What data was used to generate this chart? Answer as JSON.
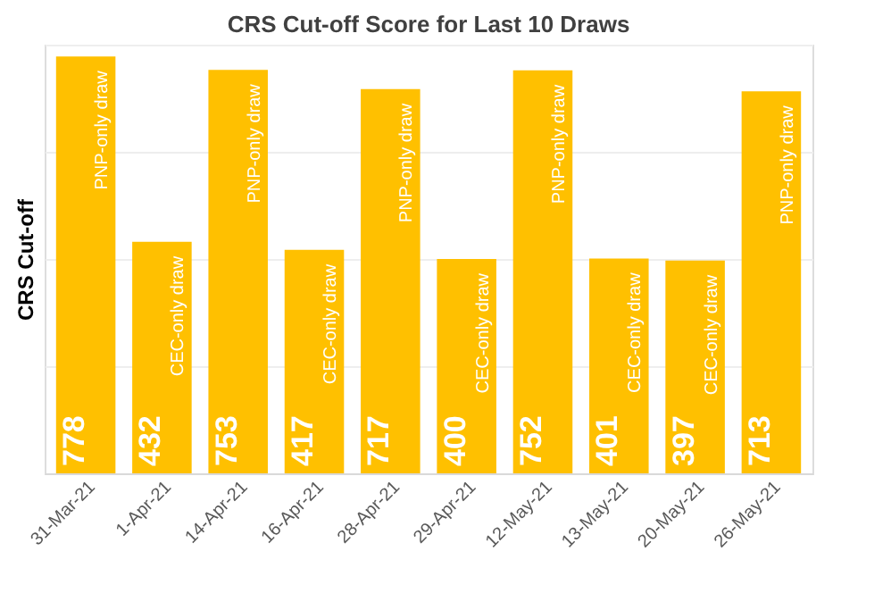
{
  "chart_data": {
    "type": "bar",
    "title": "CRS Cut-off Score for Last 10 Draws",
    "ylabel": "CRS Cut-off",
    "categories": [
      "31-Mar-21",
      "1-Apr-21",
      "14-Apr-21",
      "16-Apr-21",
      "28-Apr-21",
      "29-Apr-21",
      "12-May-21",
      "13-May-21",
      "20-May-21",
      "26-May-21"
    ],
    "values": [
      778,
      432,
      753,
      417,
      717,
      400,
      752,
      401,
      397,
      713
    ],
    "color": "#ffc000",
    "data_labels": true,
    "ylim": [
      0,
      800
    ],
    "yticks": [
      {
        "value": 0,
        "label": null
      },
      {
        "value": 200,
        "label": null
      },
      {
        "value": 400,
        "label": null
      },
      {
        "value": 600,
        "label": null
      },
      {
        "value": 800,
        "label": null
      }
    ],
    "grid": "y",
    "tick_labels": "x",
    "annotations": [
      "PNP-only draw",
      "CEC-only draw",
      "PNP-only draw",
      "CEC-only draw",
      "PNP-only draw",
      "CEC-only draw",
      "PNP-only draw",
      "CEC-only draw",
      "CEC-only draw",
      "PNP-only draw"
    ]
  }
}
